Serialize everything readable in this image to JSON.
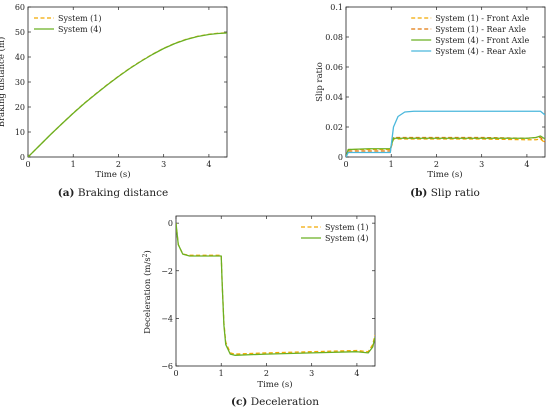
{
  "colors": {
    "system1": "#f2a900",
    "system4": "#6ab023",
    "system1_rear": "#e2780a",
    "system4_rear": "#4bb8dc",
    "axis": "#222222"
  },
  "chart_data": [
    {
      "id": "a",
      "type": "line",
      "caption_tag": "(a)",
      "caption_text": "Braking distance",
      "xlabel": "Time (s)",
      "ylabel": "Braking distance (m)",
      "xlim": [
        0,
        4.4
      ],
      "ylim": [
        0,
        60
      ],
      "xticks": [
        0,
        1,
        2,
        3,
        4
      ],
      "yticks": [
        0,
        10,
        20,
        30,
        40,
        50,
        60
      ],
      "legend_position": "top-left",
      "grid": false,
      "series": [
        {
          "name": "System (1)",
          "color_key": "system1",
          "dash": true,
          "x": [
            0,
            0.25,
            0.5,
            0.75,
            1.0,
            1.25,
            1.5,
            1.75,
            2.0,
            2.25,
            2.5,
            2.75,
            3.0,
            3.25,
            3.5,
            3.75,
            4.0,
            4.2,
            4.4
          ],
          "y": [
            0,
            4.5,
            9.0,
            13.3,
            17.6,
            21.6,
            25.3,
            28.9,
            32.3,
            35.5,
            38.4,
            41.1,
            43.5,
            45.5,
            47.1,
            48.3,
            49.1,
            49.5,
            49.7
          ]
        },
        {
          "name": "System (4)",
          "color_key": "system4",
          "dash": false,
          "x": [
            0,
            0.25,
            0.5,
            0.75,
            1.0,
            1.25,
            1.5,
            1.75,
            2.0,
            2.25,
            2.5,
            2.75,
            3.0,
            3.25,
            3.5,
            3.75,
            4.0,
            4.2,
            4.4
          ],
          "y": [
            0,
            4.5,
            9.0,
            13.3,
            17.5,
            21.5,
            25.2,
            28.8,
            32.2,
            35.4,
            38.3,
            41.0,
            43.4,
            45.4,
            47.0,
            48.2,
            49.0,
            49.4,
            49.6
          ]
        }
      ]
    },
    {
      "id": "b",
      "type": "line",
      "caption_tag": "(b)",
      "caption_text": "Slip ratio",
      "xlabel": "Time (s)",
      "ylabel": "Slip ratio",
      "xlim": [
        0,
        4.4
      ],
      "ylim": [
        0,
        0.1
      ],
      "xticks": [
        0,
        1,
        2,
        3,
        4
      ],
      "yticks": [
        0,
        0.02,
        0.04,
        0.06,
        0.08,
        0.1
      ],
      "ytick_labels": [
        "0",
        "0.02",
        "0.04",
        "0.06",
        "0.08",
        "0.1"
      ],
      "legend_position": "top-right",
      "grid": false,
      "series": [
        {
          "name": "System (1) - Front Axle",
          "color_key": "system1",
          "dash": true,
          "x": [
            0,
            0.05,
            0.5,
            0.98,
            1.05,
            1.2,
            2.0,
            3.0,
            4.0,
            4.2,
            4.3,
            4.4
          ],
          "y": [
            0.0,
            0.005,
            0.005,
            0.005,
            0.012,
            0.012,
            0.012,
            0.012,
            0.0115,
            0.0115,
            0.012,
            0.0095
          ]
        },
        {
          "name": "System (1) - Rear Axle",
          "color_key": "system1_rear",
          "dash": true,
          "x": [
            0,
            0.05,
            0.5,
            0.98,
            1.05,
            1.2,
            2.0,
            3.0,
            4.0,
            4.2,
            4.3,
            4.4
          ],
          "y": [
            0.0,
            0.004,
            0.004,
            0.004,
            0.013,
            0.013,
            0.013,
            0.013,
            0.0125,
            0.013,
            0.013,
            0.01
          ]
        },
        {
          "name": "System (4) - Front Axle",
          "color_key": "system4",
          "dash": false,
          "x": [
            0,
            0.05,
            0.5,
            0.98,
            1.05,
            1.2,
            2.0,
            3.0,
            4.0,
            4.2,
            4.3,
            4.4
          ],
          "y": [
            0.0,
            0.005,
            0.0055,
            0.0055,
            0.0125,
            0.0125,
            0.0125,
            0.0125,
            0.0125,
            0.013,
            0.014,
            0.012
          ]
        },
        {
          "name": "System (4) - Rear Axle",
          "color_key": "system4_rear",
          "dash": false,
          "x": [
            0,
            0.05,
            0.5,
            0.98,
            1.05,
            1.15,
            1.3,
            1.5,
            2.0,
            3.0,
            4.0,
            4.3,
            4.4
          ],
          "y": [
            0.0,
            0.003,
            0.003,
            0.003,
            0.02,
            0.027,
            0.03,
            0.0305,
            0.0305,
            0.0305,
            0.0305,
            0.0305,
            0.028
          ]
        }
      ]
    },
    {
      "id": "c",
      "type": "line",
      "caption_tag": "(c)",
      "caption_text": "Deceleration",
      "xlabel": "Time (s)",
      "ylabel": "Deceleration (m/s",
      "ylabel_sup": "2",
      "ylabel_close": ")",
      "xlim": [
        0,
        4.4
      ],
      "ylim": [
        -6,
        0.3
      ],
      "xticks": [
        0,
        1,
        2,
        3,
        4
      ],
      "yticks": [
        -6,
        -4,
        -2,
        0
      ],
      "ytick_labels": [
        "−6",
        "−4",
        "−2",
        "0"
      ],
      "legend_position": "top-right",
      "grid": false,
      "series": [
        {
          "name": "System (1)",
          "color_key": "system1",
          "dash": true,
          "x": [
            0,
            0.05,
            0.15,
            0.3,
            0.5,
            0.8,
            1.0,
            1.02,
            1.06,
            1.1,
            1.2,
            1.3,
            2.0,
            3.0,
            4.0,
            4.25,
            4.35,
            4.4
          ],
          "y": [
            0,
            -0.9,
            -1.3,
            -1.35,
            -1.35,
            -1.35,
            -1.35,
            -2.5,
            -4.2,
            -5.0,
            -5.45,
            -5.5,
            -5.45,
            -5.4,
            -5.35,
            -5.4,
            -5.1,
            -4.7
          ]
        },
        {
          "name": "System (4)",
          "color_key": "system4",
          "dash": false,
          "x": [
            0,
            0.05,
            0.15,
            0.3,
            0.5,
            0.8,
            1.0,
            1.02,
            1.06,
            1.1,
            1.2,
            1.3,
            2.0,
            3.0,
            4.0,
            4.25,
            4.35,
            4.4
          ],
          "y": [
            0,
            -0.9,
            -1.3,
            -1.38,
            -1.38,
            -1.38,
            -1.38,
            -2.5,
            -4.3,
            -5.1,
            -5.5,
            -5.55,
            -5.5,
            -5.45,
            -5.4,
            -5.45,
            -5.2,
            -4.8
          ]
        }
      ]
    }
  ]
}
